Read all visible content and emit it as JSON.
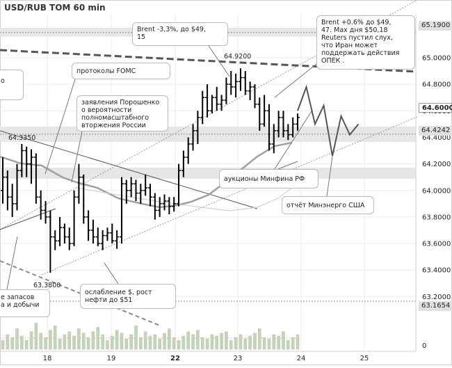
{
  "title": "USD/RUB TOM 60 min",
  "colors": {
    "bars": "#000000",
    "ma": "#a0a0a0",
    "forecast": "#555555",
    "level_band": "#e6e6e6",
    "resistance": "#555555",
    "grid": "#ebebeb"
  },
  "price_tags": {
    "p65190": "65.1900",
    "p64600": "64.6000",
    "p64424": "64.4242",
    "p63165": "63.1654"
  },
  "chart_data": {
    "type": "ohlc",
    "title": "USD/RUB TOM 60 min",
    "ylim": [
      63.05,
      65.33
    ],
    "yticks": [
      "65.0000",
      "64.8000",
      "64.6000",
      "64.4000",
      "64.2000",
      "64.0000",
      "63.8000",
      "63.6000",
      "63.4000",
      "63.2000"
    ],
    "ytick_values": [
      65.0,
      64.8,
      64.6,
      64.4,
      64.2,
      64.0,
      63.8,
      63.6,
      63.4,
      63.2
    ],
    "xticks": [
      "18",
      "19",
      "22",
      "23",
      "24",
      "25"
    ],
    "grid": true,
    "highs_lows_labels": {
      "high": "64.9200",
      "low": "63.3800",
      "local_high": "64.3350"
    },
    "levels": [
      65.19,
      64.42,
      63.165
    ],
    "ohlc": [
      [
        64.0,
        64.25,
        63.9,
        64.1
      ],
      [
        64.1,
        64.15,
        63.85,
        63.95
      ],
      [
        63.95,
        64.05,
        63.8,
        63.9
      ],
      [
        63.9,
        64.2,
        63.85,
        64.15
      ],
      [
        64.15,
        64.35,
        64.1,
        64.3
      ],
      [
        64.3,
        64.33,
        64.1,
        64.2
      ],
      [
        64.2,
        64.31,
        64.05,
        64.25
      ],
      [
        64.25,
        64.28,
        63.9,
        63.95
      ],
      [
        63.95,
        64.0,
        63.78,
        63.85
      ],
      [
        63.85,
        63.92,
        63.75,
        63.8
      ],
      [
        63.8,
        63.85,
        63.38,
        63.65
      ],
      [
        63.65,
        63.7,
        63.55,
        63.62
      ],
      [
        63.62,
        63.8,
        63.58,
        63.72
      ],
      [
        63.72,
        63.75,
        63.6,
        63.65
      ],
      [
        63.65,
        63.72,
        63.55,
        63.6
      ],
      [
        63.6,
        64.0,
        63.58,
        63.95
      ],
      [
        63.95,
        64.2,
        63.9,
        64.1
      ],
      [
        64.1,
        64.12,
        63.75,
        63.8
      ],
      [
        63.8,
        63.85,
        63.62,
        63.7
      ],
      [
        63.7,
        63.78,
        63.6,
        63.65
      ],
      [
        63.65,
        63.72,
        63.58,
        63.6
      ],
      [
        63.6,
        63.7,
        63.55,
        63.66
      ],
      [
        63.66,
        63.72,
        63.62,
        63.68
      ],
      [
        63.68,
        63.75,
        63.6,
        63.62
      ],
      [
        63.62,
        63.7,
        63.56,
        63.65
      ],
      [
        63.65,
        64.1,
        63.6,
        64.05
      ],
      [
        64.05,
        64.08,
        63.9,
        64.0
      ],
      [
        64.0,
        64.1,
        63.95,
        64.05
      ],
      [
        64.05,
        64.08,
        63.92,
        63.98
      ],
      [
        63.98,
        64.05,
        63.9,
        64.0
      ],
      [
        64.0,
        64.12,
        63.96,
        64.02
      ],
      [
        64.02,
        64.05,
        63.88,
        63.95
      ],
      [
        63.95,
        63.98,
        63.78,
        63.85
      ],
      [
        63.85,
        63.95,
        63.8,
        63.9
      ],
      [
        63.9,
        63.97,
        63.85,
        63.92
      ],
      [
        63.92,
        63.95,
        63.82,
        63.88
      ],
      [
        63.88,
        63.95,
        63.84,
        63.9
      ],
      [
        63.9,
        64.2,
        63.88,
        64.15
      ],
      [
        64.15,
        64.3,
        64.1,
        64.25
      ],
      [
        64.25,
        64.4,
        64.2,
        64.35
      ],
      [
        64.35,
        64.5,
        64.3,
        64.45
      ],
      [
        64.45,
        64.6,
        64.35,
        64.55
      ],
      [
        64.55,
        64.75,
        64.5,
        64.7
      ],
      [
        64.7,
        64.8,
        64.55,
        64.6
      ],
      [
        64.6,
        64.72,
        64.58,
        64.7
      ],
      [
        64.7,
        64.78,
        64.6,
        64.65
      ],
      [
        64.65,
        64.72,
        64.6,
        64.68
      ],
      [
        64.68,
        64.85,
        64.65,
        64.8
      ],
      [
        64.8,
        64.9,
        64.72,
        64.78
      ],
      [
        64.78,
        64.88,
        64.7,
        64.82
      ],
      [
        64.82,
        64.92,
        64.75,
        64.85
      ],
      [
        64.85,
        64.9,
        64.72,
        64.75
      ],
      [
        64.75,
        64.82,
        64.68,
        64.78
      ],
      [
        64.78,
        64.8,
        64.62,
        64.65
      ],
      [
        64.65,
        64.7,
        64.45,
        64.5
      ],
      [
        64.5,
        64.72,
        64.48,
        64.6
      ],
      [
        64.6,
        64.65,
        64.3,
        64.35
      ],
      [
        64.35,
        64.5,
        64.28,
        64.45
      ],
      [
        64.45,
        64.6,
        64.4,
        64.55
      ],
      [
        64.55,
        64.6,
        64.4,
        64.45
      ],
      [
        64.45,
        64.5,
        64.38,
        64.42
      ],
      [
        64.42,
        64.55,
        64.4,
        64.5
      ],
      [
        64.5,
        64.58,
        64.45,
        64.55
      ]
    ],
    "forecast": [
      64.6,
      64.78,
      64.5,
      64.64,
      64.26,
      64.56,
      64.42,
      64.5
    ],
    "volume": [
      0.3,
      0.5,
      0.4,
      0.7,
      0.45,
      0.3,
      0.6,
      0.9,
      0.55,
      0.4,
      0.65,
      0.8,
      0.35,
      0.5,
      0.6,
      0.45,
      0.7,
      0.55,
      0.4,
      0.6,
      0.75,
      0.5,
      0.3,
      0.45,
      0.65,
      0.55,
      0.35,
      0.5,
      0.8,
      0.4,
      0.6,
      0.45,
      0.5,
      0.35,
      0.55,
      0.7,
      0.4,
      0.3,
      0.45,
      0.6,
      0.5,
      0.65,
      0.4,
      0.35,
      0.5,
      0.45,
      0.55,
      0.6,
      0.3,
      0.4,
      0.5,
      0.35,
      0.45,
      0.55,
      0.7,
      0.4,
      0.35,
      0.5,
      0.45,
      0.6,
      0.3,
      0.4,
      0.5
    ]
  },
  "annotations": {
    "brent_down": "Brent -3,3%, до $49,\n15",
    "brent_up": "Brent +0.6% до $49,\n47. Мах дня $50,18\nReuters пустил слух,\nчто Иран может\nподдержать действия\nОПЕК .",
    "fomc": "протоколы FOMC",
    "poroshenko": "заявления Порошенко\nо вероятности\nполномасштабного\nвторжения России",
    "minfin": "аукционы Минфина РФ",
    "energy": "отчёт Минэнерго США",
    "usd_weak": "ослабление $, рост\nнефти до $51",
    "stocks": "е запасов\nа и добычи",
    "left_cut": "о"
  }
}
